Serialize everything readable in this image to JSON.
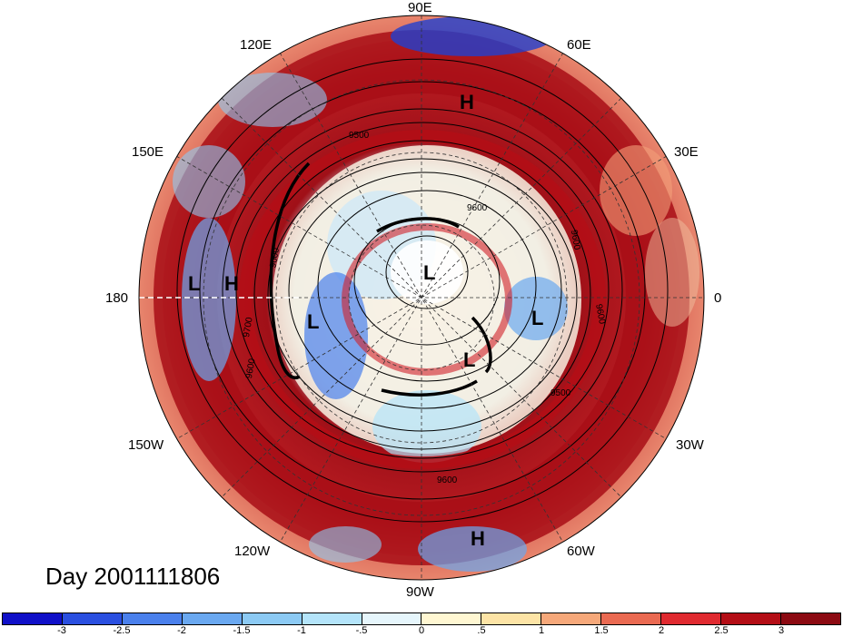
{
  "title": "Day 2001111806",
  "longitude_labels": {
    "top": "90E",
    "top_left": "120E",
    "top_right": "60E",
    "upper_left": "150E",
    "upper_right": "30E",
    "left": "180",
    "right": "0",
    "lower_left": "150W",
    "lower_right": "30W",
    "bottom_left": "120W",
    "bottom_right": "60W",
    "bottom": "90W"
  },
  "pressure_centers": [
    {
      "label": "H",
      "region": "north-central Siberia"
    },
    {
      "label": "L",
      "region": "north Pacific west"
    },
    {
      "label": "H",
      "region": "north Pacific"
    },
    {
      "label": "L",
      "region": "pole"
    },
    {
      "label": "L",
      "region": "Canada"
    },
    {
      "label": "L",
      "region": "Scandinavia"
    },
    {
      "label": "L",
      "region": "Greenland"
    },
    {
      "label": "H",
      "region": "tropical Americas"
    }
  ],
  "contour_labels": [
    "9500",
    "9600",
    "9700",
    "9600",
    "9600",
    "9600",
    "9500",
    "9600",
    "9600"
  ],
  "colorbar": {
    "ticks": [
      "-3",
      "-2.5",
      "-2",
      "-1.5",
      "-1",
      "-.5",
      "0",
      ".5",
      "1",
      "1.5",
      "2",
      "2.5",
      "3"
    ],
    "colors": [
      "#1010c8",
      "#2a4fe0",
      "#4a80ec",
      "#6aa8f0",
      "#8ccaf4",
      "#b4e4fa",
      "#e6f6fc",
      "#fff7d2",
      "#fde4a6",
      "#f6a87a",
      "#ea6a52",
      "#e02a30",
      "#b40e16",
      "#8c0a12"
    ]
  }
}
